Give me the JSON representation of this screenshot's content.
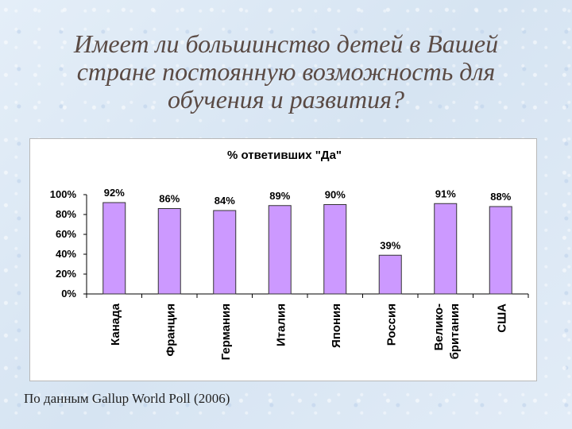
{
  "slide": {
    "title_line1": "Имеет ли большинство детей в Вашей",
    "title_line2": "стране постоянную возможность для",
    "title_line3": "обучения и развития?",
    "source": "По данным Gallup World Poll (2006)"
  },
  "chart_data": {
    "type": "bar",
    "title": "% ответивших \"Да\"",
    "categories": [
      "Канада",
      "Франция",
      "Германия",
      "Италия",
      "Япония",
      "Россия",
      "Велико-\nбритания",
      "США"
    ],
    "series": [
      {
        "values": [
          92,
          86,
          84,
          89,
          90,
          39,
          91,
          88
        ]
      }
    ],
    "data_labels": [
      "92%",
      "86%",
      "84%",
      "89%",
      "90%",
      "39%",
      "91%",
      "88%"
    ],
    "y_ticks": [
      "0%",
      "20%",
      "40%",
      "60%",
      "80%",
      "100%"
    ],
    "ylim": [
      0,
      100
    ],
    "bar_color": "#cc99ff",
    "bar_outline": "#333333",
    "grid": false,
    "legend": "none"
  }
}
